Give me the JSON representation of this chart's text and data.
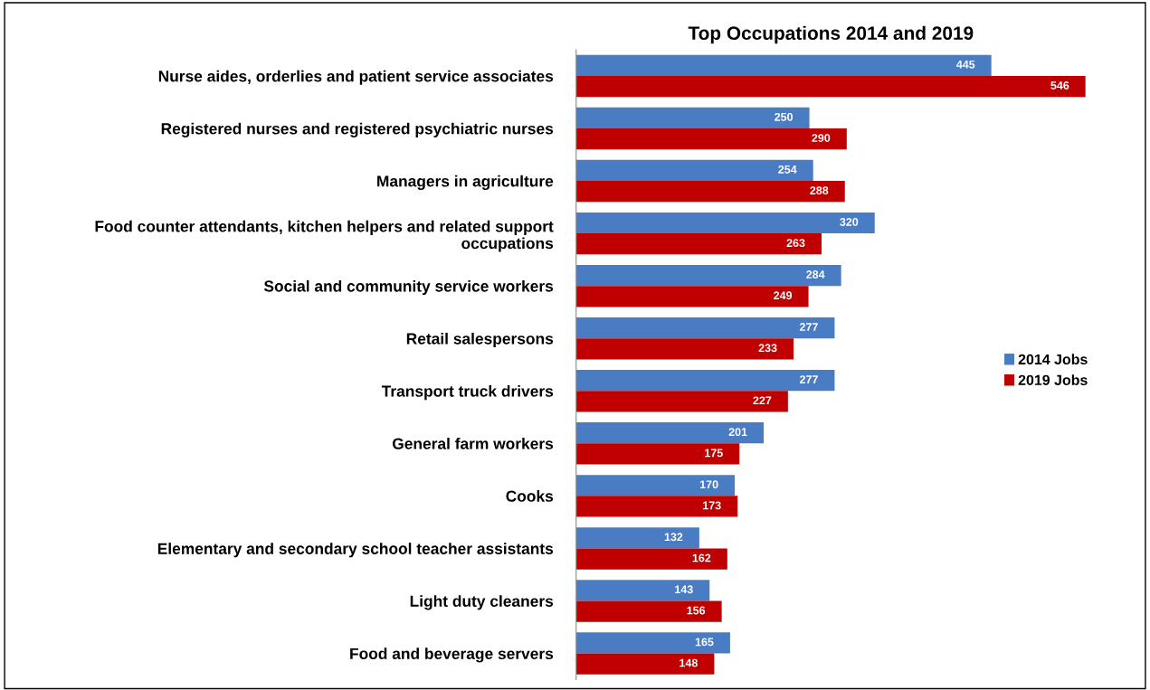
{
  "chart_data": {
    "type": "bar",
    "orientation": "horizontal",
    "title": "Top Occupations 2014 and 2019",
    "categories": [
      "Nurse aides, orderlies and patient service associates",
      "Registered nurses and registered psychiatric nurses",
      "Managers in agriculture",
      "Food counter attendants, kitchen helpers and related support\noccupations",
      "Social and community service workers",
      "Retail salespersons",
      "Transport truck drivers",
      "General farm workers",
      "Cooks",
      "Elementary and secondary school teacher assistants",
      "Light duty cleaners",
      "Food and beverage servers"
    ],
    "series": [
      {
        "name": "2014 Jobs",
        "color": "#4a7cc4",
        "values": [
          445,
          250,
          254,
          320,
          284,
          277,
          277,
          201,
          170,
          132,
          143,
          165
        ]
      },
      {
        "name": "2019 Jobs",
        "color": "#c00000",
        "values": [
          546,
          290,
          288,
          263,
          249,
          233,
          227,
          175,
          173,
          162,
          156,
          148
        ]
      }
    ],
    "data_labels": true,
    "legend": "right",
    "tick_labels": "y",
    "grid": false
  }
}
